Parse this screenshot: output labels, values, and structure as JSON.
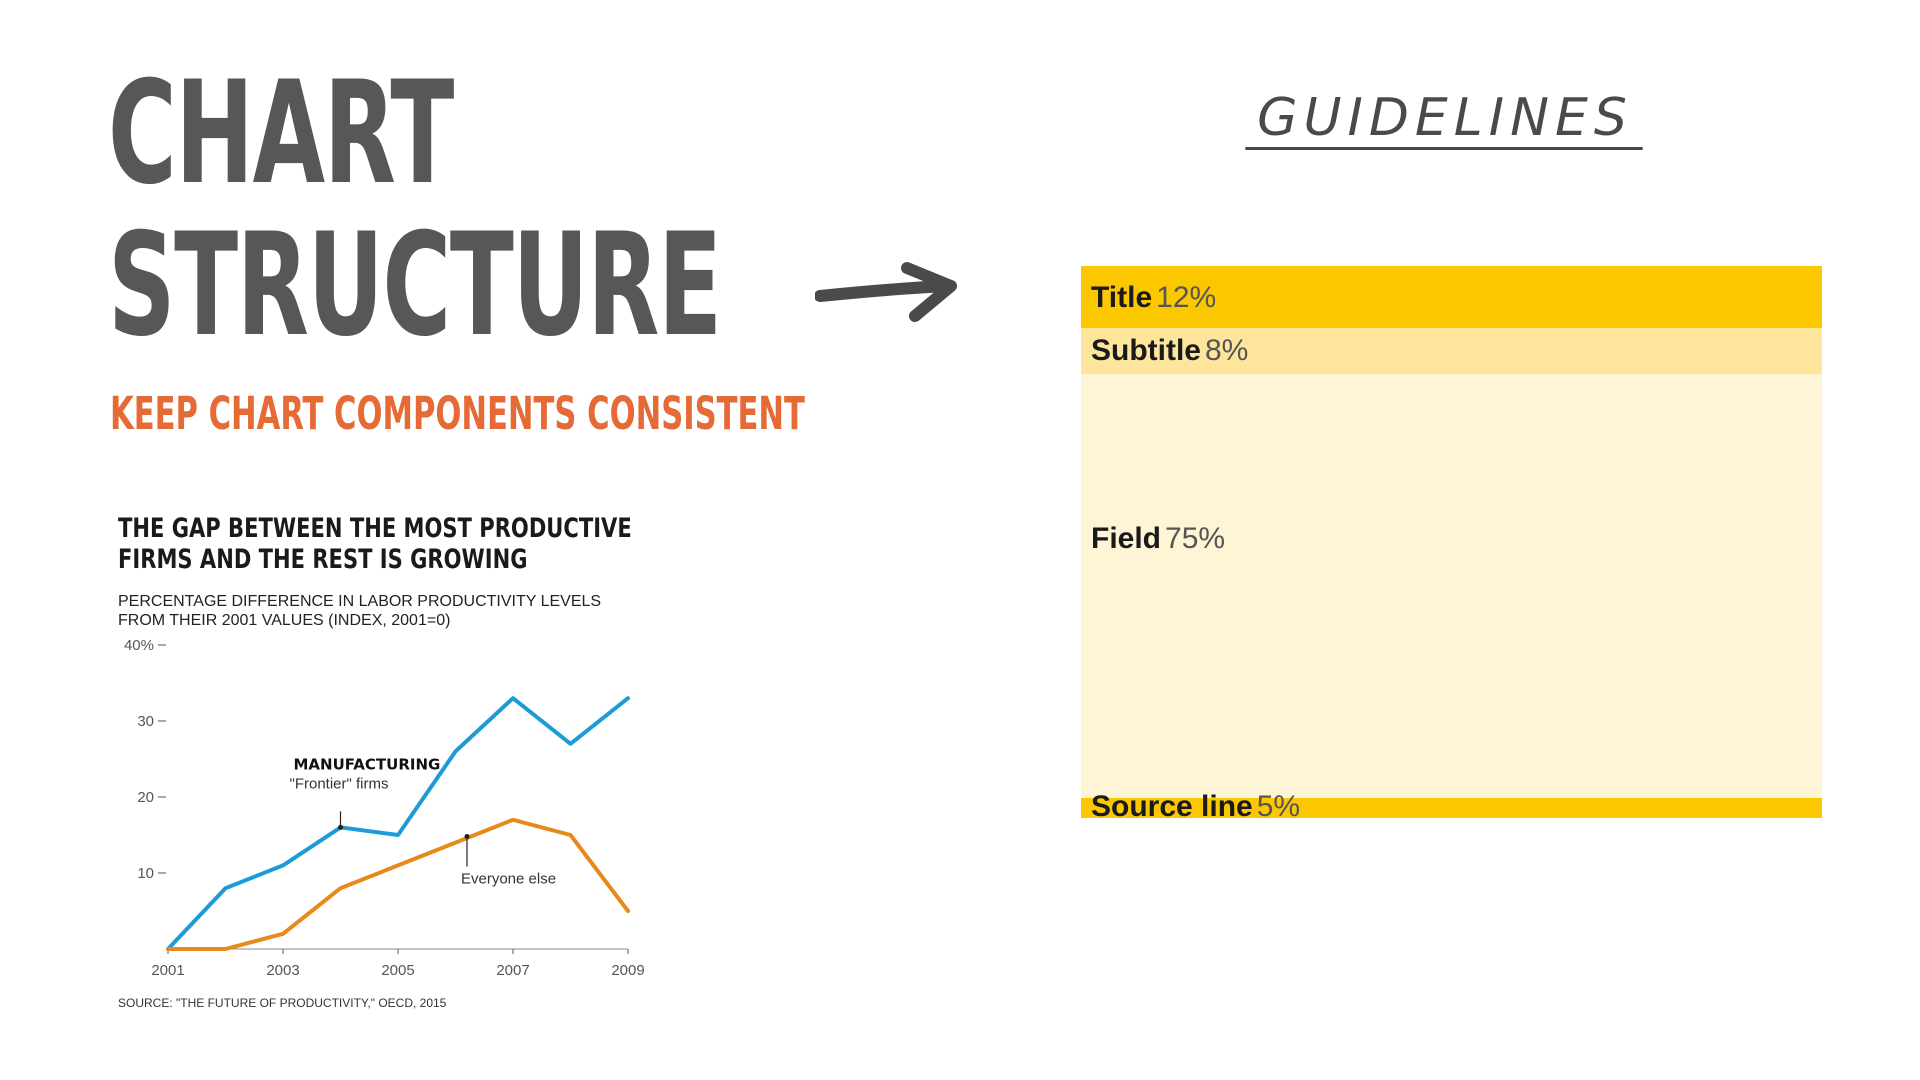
{
  "heading": {
    "line1": "CHART",
    "line2": "STRUCTURE",
    "subheading": "KEEP CHART COMPONENTS CONSISTENT"
  },
  "guidelines": {
    "title": "GUIDELINES",
    "rows": {
      "title": {
        "label": "Title",
        "pct": "12%"
      },
      "subtitle": {
        "label": "Subtitle",
        "pct": "8%"
      },
      "field": {
        "label": "Field",
        "pct": "75%"
      },
      "source": {
        "label": "Source line",
        "pct": "5%"
      }
    }
  },
  "colors": {
    "heading": "#575757",
    "subheading": "#e56a35",
    "title_band": "#fbc800",
    "subtitle_band": "#fde59c",
    "field_band": "#fef4d6",
    "frontier_series": "#1e9bd7",
    "everyone_series": "#e8891c"
  },
  "chart_data": {
    "type": "line",
    "title_line1": "THE GAP BETWEEN THE MOST PRODUCTIVE",
    "title_line2": "FIRMS AND THE REST IS GROWING",
    "subtitle_line1": "PERCENTAGE DIFFERENCE IN LABOR PRODUCTIVITY LEVELS",
    "subtitle_line2": "FROM THEIR 2001 VALUES (INDEX, 2001=0)",
    "source": "SOURCE: \"THE FUTURE OF PRODUCTIVITY,\" OECD, 2015",
    "x": [
      2001,
      2002,
      2003,
      2004,
      2005,
      2006,
      2007,
      2008,
      2009
    ],
    "x_tick_labels": [
      "2001",
      "2003",
      "2005",
      "2007",
      "2009"
    ],
    "y_tick_labels": [
      "10",
      "20",
      "30",
      "40%"
    ],
    "ylim": [
      0,
      40
    ],
    "xlim": [
      2001,
      2009
    ],
    "grid": false,
    "series": [
      {
        "values": [
          0,
          8,
          11,
          16,
          15,
          26,
          33,
          27,
          33
        ]
      },
      {
        "values": [
          0,
          0,
          2,
          8,
          11,
          14,
          17,
          15,
          5
        ]
      }
    ],
    "annotations": {
      "frontier_heading": "MANUFACTURING",
      "frontier_label": "\"Frontier\" firms",
      "frontier_at": {
        "x": 2004,
        "y": 16
      },
      "everyone_label": "Everyone else",
      "everyone_at": {
        "x": 2006.2,
        "y": 14.8
      }
    }
  }
}
